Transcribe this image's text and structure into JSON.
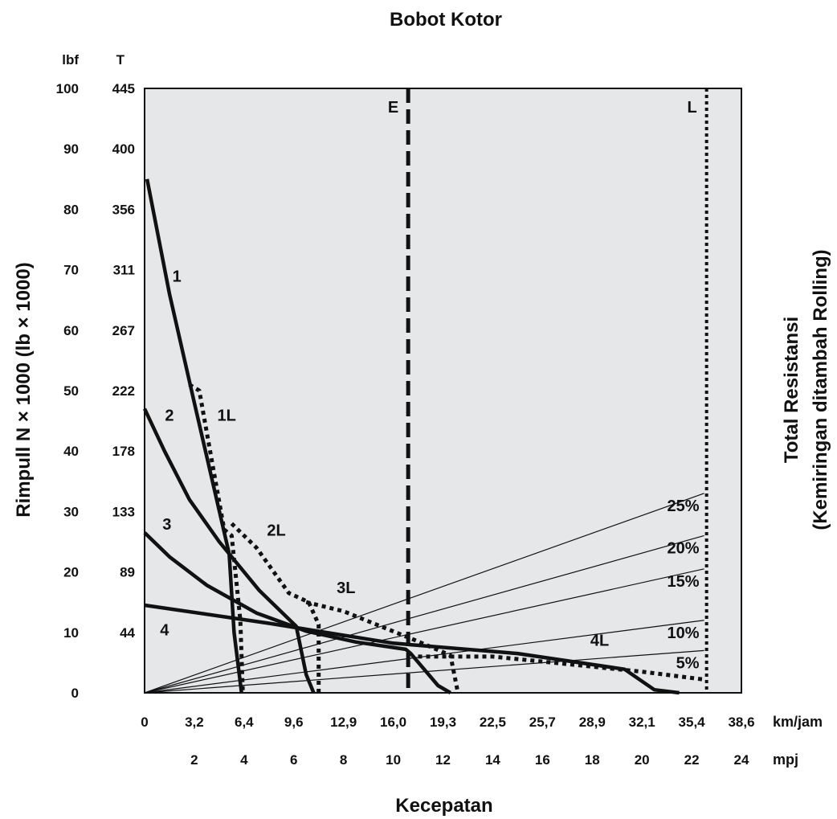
{
  "chart_data": {
    "type": "line",
    "title": "Bobot Kotor",
    "ylabel": "Rimpull N × 1000 (lb × 1000)",
    "y2label": [
      "Total Resistansi",
      "(Kemiringan ditambah Rolling)"
    ],
    "xlabel": "Kecepatan",
    "y_lbf_header": "lbf",
    "y_t_header": "T",
    "y_lbf_ticks": [
      "0",
      "10",
      "20",
      "30",
      "40",
      "50",
      "60",
      "70",
      "80",
      "90",
      "100"
    ],
    "y_t_ticks": [
      "",
      "44",
      "89",
      "133",
      "178",
      "222",
      "267",
      "311",
      "356",
      "400",
      "445"
    ],
    "x_kmh_unit": "km/jam",
    "x_kmh_ticks": [
      "0",
      "3,2",
      "6,4",
      "9,6",
      "12,9",
      "16,0",
      "19,3",
      "22,5",
      "25,7",
      "28,9",
      "32,1",
      "35,4",
      "38,6"
    ],
    "x_mph_unit": "mpj",
    "x_mph_ticks": [
      "2",
      "4",
      "6",
      "8",
      "10",
      "12",
      "14",
      "16",
      "18",
      "20",
      "22",
      "24"
    ],
    "xlim": [
      0,
      24
    ],
    "ylim": [
      0,
      100
    ],
    "x_units": "mph",
    "y_units": "lbf x 1000",
    "grid": false,
    "series": [
      {
        "name": "1",
        "style": "solid",
        "points": [
          [
            0.1,
            85
          ],
          [
            1.0,
            66
          ],
          [
            2.0,
            48
          ],
          [
            3.4,
            23
          ],
          [
            3.6,
            10
          ],
          [
            3.9,
            0
          ]
        ]
      },
      {
        "name": "2",
        "style": "solid",
        "points": [
          [
            0,
            47
          ],
          [
            0.8,
            40
          ],
          [
            1.8,
            32
          ],
          [
            3.0,
            25
          ],
          [
            4.6,
            17
          ],
          [
            6.1,
            11
          ],
          [
            6.5,
            3
          ],
          [
            6.8,
            0
          ]
        ]
      },
      {
        "name": "3",
        "style": "solid",
        "points": [
          [
            0,
            26.5
          ],
          [
            1.0,
            22.5
          ],
          [
            2.5,
            17.8
          ],
          [
            4.5,
            13.2
          ],
          [
            6.5,
            10.2
          ],
          [
            8.5,
            8.4
          ],
          [
            10.5,
            7.2
          ],
          [
            10.7,
            6.5
          ],
          [
            11.8,
            1.2
          ],
          [
            12.3,
            0
          ]
        ]
      },
      {
        "name": "4",
        "style": "solid",
        "points": [
          [
            0,
            14.5
          ],
          [
            5,
            11.5
          ],
          [
            10,
            8.2
          ],
          [
            15,
            6.5
          ],
          [
            19.3,
            3.9
          ],
          [
            20.5,
            0.5
          ],
          [
            21.5,
            0
          ]
        ]
      },
      {
        "name": "1L",
        "style": "dotted",
        "points": [
          [
            1.8,
            51
          ],
          [
            2.2,
            50
          ],
          [
            3.2,
            27
          ],
          [
            3.5,
            26
          ],
          [
            3.85,
            12
          ],
          [
            3.95,
            0
          ]
        ]
      },
      {
        "name": "2L",
        "style": "dotted",
        "points": [
          [
            3.5,
            28
          ],
          [
            4.5,
            24
          ],
          [
            5.8,
            16.5
          ],
          [
            6.6,
            15
          ],
          [
            7.0,
            11.3
          ],
          [
            7.0,
            0
          ]
        ]
      },
      {
        "name": "3L",
        "style": "dotted",
        "points": [
          [
            6.5,
            15
          ],
          [
            8.0,
            13.5
          ],
          [
            11.0,
            8.5
          ],
          [
            12.3,
            6.2
          ],
          [
            12.6,
            0
          ]
        ]
      },
      {
        "name": "4L",
        "style": "dotted",
        "points": [
          [
            11.0,
            6.0
          ],
          [
            14.0,
            6.0
          ],
          [
            20.0,
            3.5
          ],
          [
            22.5,
            2.2
          ]
        ]
      }
    ],
    "grade_lines": [
      {
        "name": "5%",
        "label": "5%",
        "end_y": 7.0
      },
      {
        "name": "10%",
        "label": "10%",
        "end_y": 12.0
      },
      {
        "name": "15%",
        "label": "15%",
        "end_y": 20.5
      },
      {
        "name": "20%",
        "label": "20%",
        "end_y": 26.0
      },
      {
        "name": "25%",
        "label": "25%",
        "end_y": 33.0
      }
    ],
    "grade_line_end_x": 22.5,
    "vertical_lines": [
      {
        "name": "E",
        "label": "E",
        "x": 10.6,
        "style": "dashed"
      },
      {
        "name": "L",
        "label": "L",
        "x": 22.6,
        "style": "dotted"
      }
    ],
    "curve_labels": [
      {
        "text": "1",
        "x": 1.3,
        "y": 68
      },
      {
        "text": "1L",
        "x": 3.3,
        "y": 45
      },
      {
        "text": "2",
        "x": 1.0,
        "y": 45
      },
      {
        "text": "2L",
        "x": 5.3,
        "y": 26
      },
      {
        "text": "3",
        "x": 0.9,
        "y": 27
      },
      {
        "text": "3L",
        "x": 8.1,
        "y": 16.5
      },
      {
        "text": "4",
        "x": 0.8,
        "y": 9.5
      },
      {
        "text": "4L",
        "x": 18.3,
        "y": 7.8
      }
    ]
  }
}
